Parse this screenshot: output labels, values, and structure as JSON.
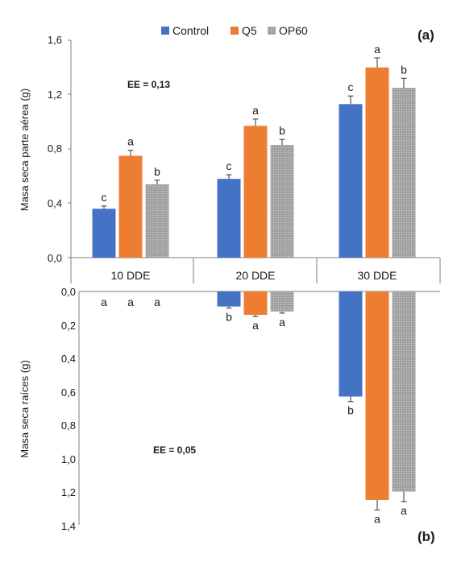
{
  "chart_data": [
    {
      "type": "bar",
      "panel_label": "(a)",
      "ylabel": "Masa seca parte aérea (g)",
      "categories": [
        "10 DDE",
        "20 DDE",
        "30 DDE"
      ],
      "ylim": [
        0,
        1.6
      ],
      "yticks": [
        "0,0",
        "0,4",
        "0,8",
        "1,2",
        "1,6"
      ],
      "grid": false,
      "annotation": "EE = 0,13",
      "series": [
        {
          "name": "Control",
          "color": "#4472C4",
          "values": [
            0.36,
            0.58,
            1.13
          ],
          "errors": [
            0.02,
            0.03,
            0.06
          ],
          "letters": [
            "c",
            "c",
            "c"
          ]
        },
        {
          "name": "Q5",
          "color": "#ED7D31",
          "values": [
            0.75,
            0.97,
            1.4
          ],
          "errors": [
            0.04,
            0.05,
            0.07
          ],
          "letters": [
            "a",
            "a",
            "a"
          ]
        },
        {
          "name": "OP60",
          "color": "#A5A5A5",
          "values": [
            0.54,
            0.83,
            1.25
          ],
          "errors": [
            0.03,
            0.04,
            0.07
          ],
          "letters": [
            "b",
            "b",
            "b"
          ]
        }
      ]
    },
    {
      "type": "bar",
      "panel_label": "(b)",
      "ylabel": "Masa seca raíces (g)",
      "categories": [
        "10 DDE",
        "20 DDE",
        "30 DDE"
      ],
      "ylim": [
        0,
        1.4
      ],
      "inverted": true,
      "yticks": [
        "0,0",
        "0,2",
        "0,4",
        "0,6",
        "0,8",
        "1,0",
        "1,2",
        "1,4"
      ],
      "grid": false,
      "annotation": "EE = 0,05",
      "series": [
        {
          "name": "Control",
          "color": "#4472C4",
          "values": [
            0.0,
            0.09,
            0.63
          ],
          "errors": [
            0.0,
            0.01,
            0.03
          ],
          "letters": [
            "a",
            "b",
            "b"
          ]
        },
        {
          "name": "Q5",
          "color": "#ED7D31",
          "values": [
            0.0,
            0.14,
            1.25
          ],
          "errors": [
            0.0,
            0.01,
            0.06
          ],
          "letters": [
            "a",
            "a",
            "a"
          ]
        },
        {
          "name": "OP60",
          "color": "#A5A5A5",
          "values": [
            0.0,
            0.12,
            1.2
          ],
          "errors": [
            0.0,
            0.01,
            0.06
          ],
          "letters": [
            "a",
            "a",
            "a"
          ]
        }
      ]
    }
  ],
  "legend": {
    "position": "top-center",
    "items": [
      {
        "label": "Control",
        "color": "#4472C4"
      },
      {
        "label": "Q5",
        "color": "#ED7D31"
      },
      {
        "label": "OP60",
        "color": "#A5A5A5"
      }
    ]
  }
}
